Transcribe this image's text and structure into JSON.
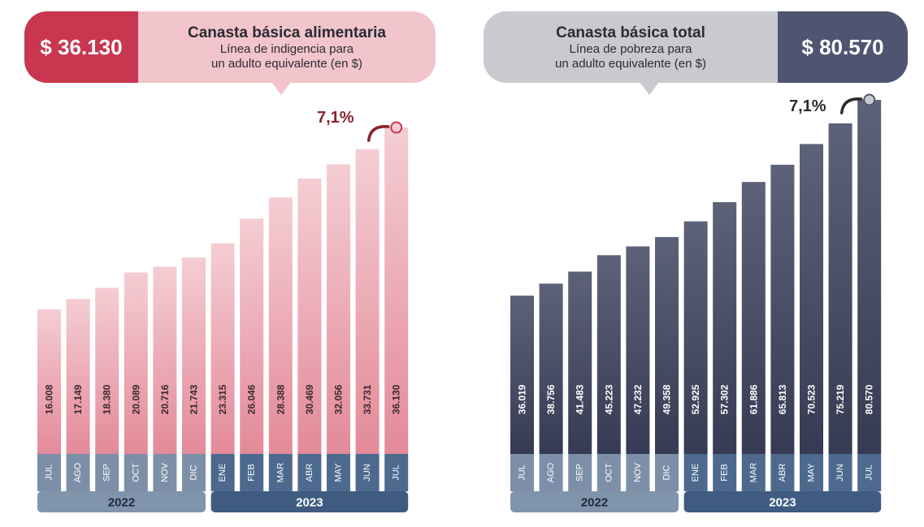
{
  "charts": [
    {
      "price": "$ 36.130",
      "title": "Canasta básica alimentaria",
      "subtitle_line1": "Línea de indigencia para",
      "subtitle_line2": "un adulto equivalente (en $)",
      "change": "7,1%"
    },
    {
      "price": "$ 80.570",
      "title": "Canasta básica total",
      "subtitle_line1": "Línea de pobreza para",
      "subtitle_line2": "un adulto equivalente (en $)",
      "change": "7,1%"
    }
  ],
  "colors": {
    "alimentaria_accent": "#c8364f",
    "alimentaria_light": "#f2c4cc",
    "alimentaria_bar_top": "#f4cdd3",
    "alimentaria_bar_bottom": "#e38a99",
    "total_accent": "#4f5570",
    "total_light": "#c9cacf",
    "total_bar_top": "#5d6278",
    "total_bar_bottom": "#363a54",
    "month_strip_2022": "#7c8fa7",
    "month_strip_2023": "#4d6a8e",
    "year_band_2022": "#8094ac",
    "year_band_2023": "#3f5c80"
  },
  "chart_data": [
    {
      "type": "bar",
      "title": "Canasta básica alimentaria",
      "categories": [
        "JUL",
        "AGO",
        "SEP",
        "OCT",
        "NOV",
        "DIC",
        "ENE",
        "FEB",
        "MAR",
        "ABR",
        "MAY",
        "JUN",
        "JUL"
      ],
      "values": [
        16008,
        17149,
        18380,
        20089,
        20716,
        21743,
        23315,
        26046,
        28388,
        30469,
        32056,
        33731,
        36130
      ],
      "value_labels": [
        "16.008",
        "17.149",
        "18.380",
        "20.089",
        "20.716",
        "21.743",
        "23.315",
        "26.046",
        "28.388",
        "30.469",
        "32.056",
        "33.731",
        "36.130"
      ],
      "year_groups": [
        {
          "label": "2022",
          "count": 6
        },
        {
          "label": "2023",
          "count": 7
        }
      ],
      "annotation": "7,1%"
    },
    {
      "type": "bar",
      "title": "Canasta básica total",
      "categories": [
        "JUL",
        "AGO",
        "SEP",
        "OCT",
        "NOV",
        "DIC",
        "ENE",
        "FEB",
        "MAR",
        "ABR",
        "MAY",
        "JUN",
        "JUL"
      ],
      "values": [
        36019,
        38756,
        41483,
        45223,
        47232,
        49358,
        52925,
        57302,
        61886,
        65813,
        70523,
        75219,
        80570
      ],
      "value_labels": [
        "36.019",
        "38.756",
        "41.483",
        "45.223",
        "47.232",
        "49.358",
        "52.925",
        "57.302",
        "61.886",
        "65.813",
        "70.523",
        "75.219",
        "80.570"
      ],
      "year_groups": [
        {
          "label": "2022",
          "count": 6
        },
        {
          "label": "2023",
          "count": 7
        }
      ],
      "annotation": "7,1%"
    }
  ]
}
